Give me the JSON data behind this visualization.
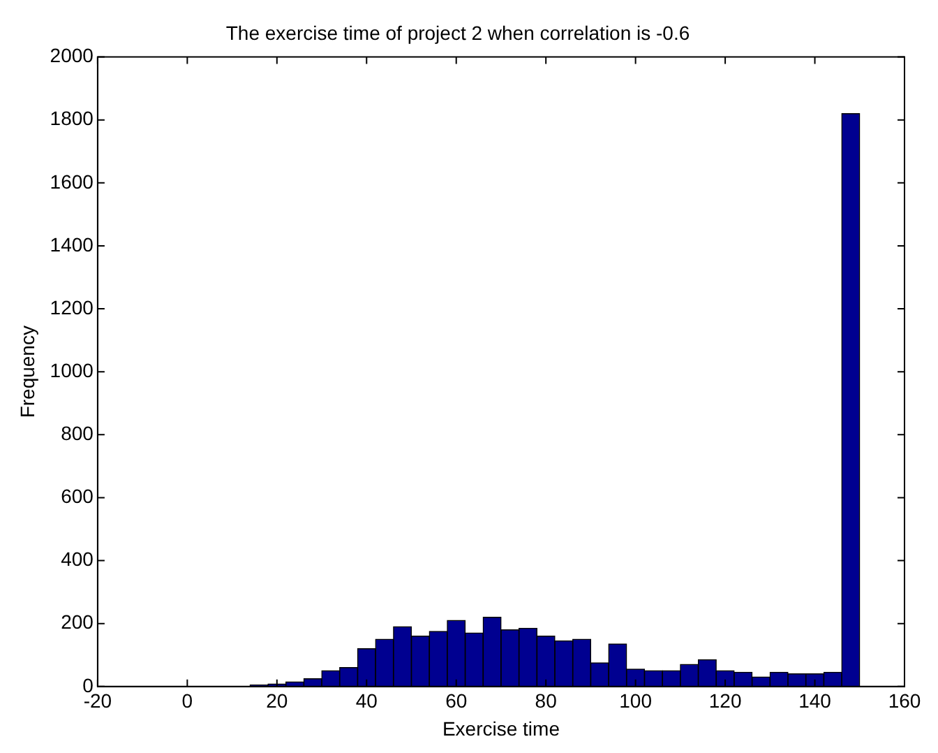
{
  "chart_data": {
    "type": "histogram",
    "title": "The exercise time of project 2 when correlation is -0.6",
    "xlabel": "Exercise time",
    "ylabel": "Frequency",
    "bins": [
      14,
      18,
      22,
      26,
      30,
      34,
      38,
      42,
      46,
      50,
      54,
      58,
      62,
      66,
      70,
      74,
      78,
      82,
      86,
      90,
      94,
      98,
      102,
      106,
      110,
      114,
      118,
      122,
      126,
      130,
      134,
      138,
      142,
      146,
      150
    ],
    "values": [
      5,
      8,
      15,
      25,
      50,
      60,
      120,
      150,
      190,
      160,
      175,
      210,
      170,
      220,
      180,
      185,
      160,
      145,
      150,
      75,
      135,
      55,
      50,
      50,
      70,
      85,
      50,
      45,
      30,
      45,
      40,
      40,
      45,
      1820
    ],
    "color": "#000090",
    "xlim": [
      -20,
      160
    ],
    "xticks": [
      -20,
      0,
      20,
      40,
      60,
      80,
      100,
      120,
      140,
      160
    ],
    "ylim": [
      0,
      2000
    ],
    "yticks": [
      0,
      200,
      400,
      600,
      800,
      1000,
      1200,
      1400,
      1600,
      1800,
      2000
    ],
    "grid": false,
    "legend": false
  }
}
